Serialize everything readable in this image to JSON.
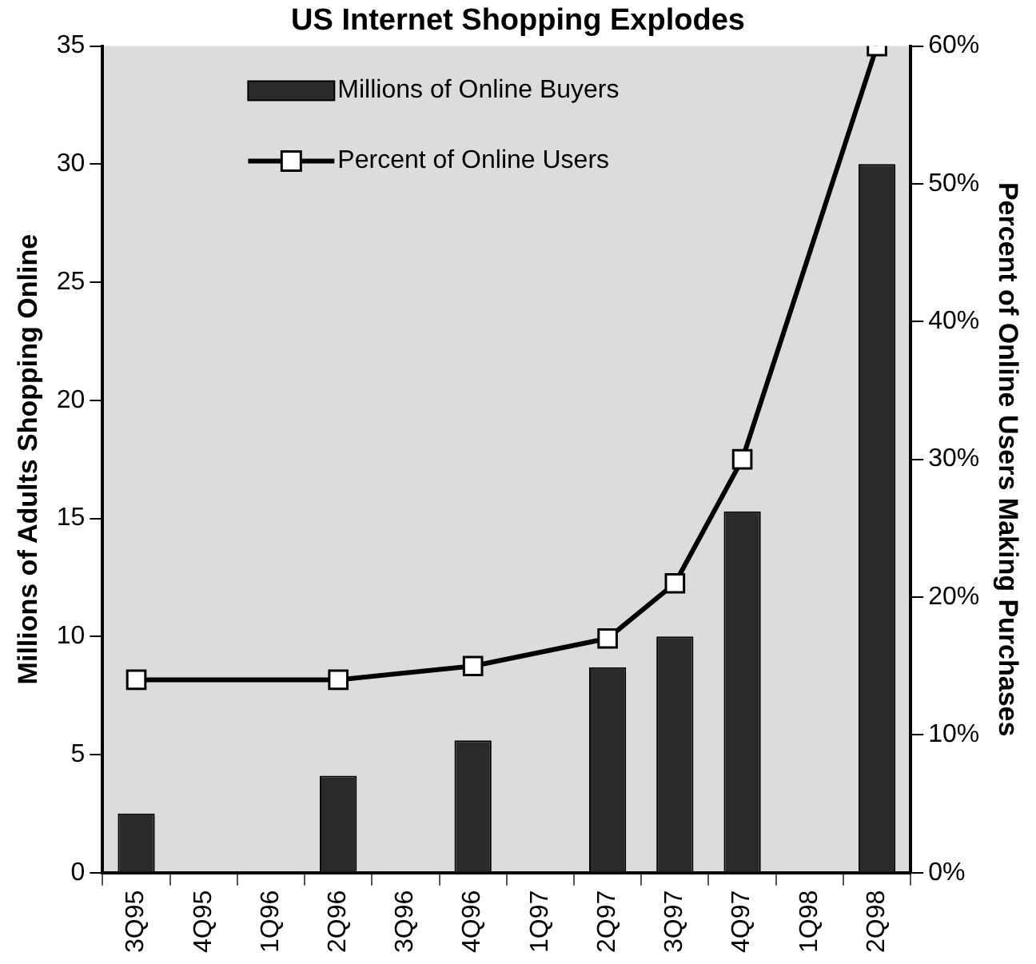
{
  "chart_data": {
    "type": "bar",
    "title": "US Internet Shopping Explodes",
    "ylabel": "Millions of Adults Shopping Online",
    "y2label": "Percent of Online Users Making Purchases",
    "categories": [
      "3Q95",
      "4Q95",
      "1Q96",
      "2Q96",
      "3Q96",
      "4Q96",
      "1Q97",
      "2Q97",
      "3Q97",
      "4Q97",
      "1Q98",
      "2Q98"
    ],
    "series": [
      {
        "name": "Millions of Online Buyers",
        "color": "#2a2a2a",
        "values": [
          2.5,
          null,
          null,
          4.1,
          null,
          5.6,
          null,
          8.7,
          10.0,
          15.3,
          null,
          30
        ]
      },
      {
        "name": "Percent of Online Users",
        "type": "line",
        "axis": "y2",
        "color": "#000000",
        "marker": "square",
        "values": [
          14,
          null,
          null,
          14,
          null,
          15,
          null,
          17,
          21,
          30,
          null,
          60
        ]
      }
    ],
    "ylim": [
      0,
      35
    ],
    "yticks": [
      0,
      5,
      10,
      15,
      20,
      25,
      30,
      35
    ],
    "y2lim": [
      0,
      60
    ],
    "y2ticks": [
      {
        "value": 0,
        "label": "0%"
      },
      {
        "value": 10,
        "label": "10%"
      },
      {
        "value": 20,
        "label": "20%"
      },
      {
        "value": 30,
        "label": "30%"
      },
      {
        "value": 40,
        "label": "40%"
      },
      {
        "value": 50,
        "label": "50%"
      },
      {
        "value": 60,
        "label": "60%"
      }
    ],
    "legend": "top",
    "grid": false
  }
}
